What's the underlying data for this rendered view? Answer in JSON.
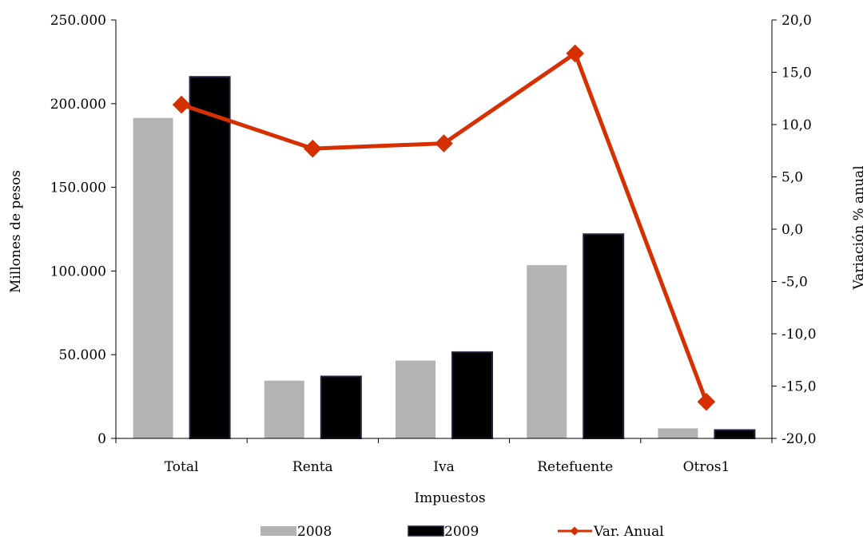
{
  "chart_data": {
    "type": "bar",
    "categories": [
      "Total",
      "Renta",
      "Iva",
      "Retefuente",
      "Otros1"
    ],
    "series": [
      {
        "name": "2008",
        "type": "bar",
        "axis": "left",
        "color": "#b3b3b3",
        "values": [
          191500,
          34500,
          46500,
          103500,
          6000
        ]
      },
      {
        "name": "2009",
        "type": "bar",
        "axis": "left",
        "color": "#000000",
        "values": [
          216000,
          37000,
          51500,
          122000,
          5000
        ]
      },
      {
        "name": "Var. Anual",
        "type": "line",
        "axis": "right",
        "color": "#d62f00",
        "values": [
          11.9,
          7.7,
          8.2,
          16.8,
          -16.5
        ]
      }
    ],
    "xlabel": "Impuestos",
    "ylabel": "Millones de pesos",
    "y2label": "Variación % anual",
    "ylim": [
      0,
      250000
    ],
    "y2lim": [
      -20,
      20
    ],
    "yticks": [
      "0",
      "50.000",
      "100.000",
      "150.000",
      "200.000",
      "250.000"
    ],
    "y2ticks": [
      "-20,0",
      "-15,0",
      "-10,0",
      "-5,0",
      "0,0",
      "5,0",
      "10,0",
      "15,0",
      "20,0"
    ],
    "grid": false,
    "legend": {
      "placement": "bottom",
      "entries": [
        "2008",
        "2009",
        "Var. Anual"
      ]
    }
  }
}
